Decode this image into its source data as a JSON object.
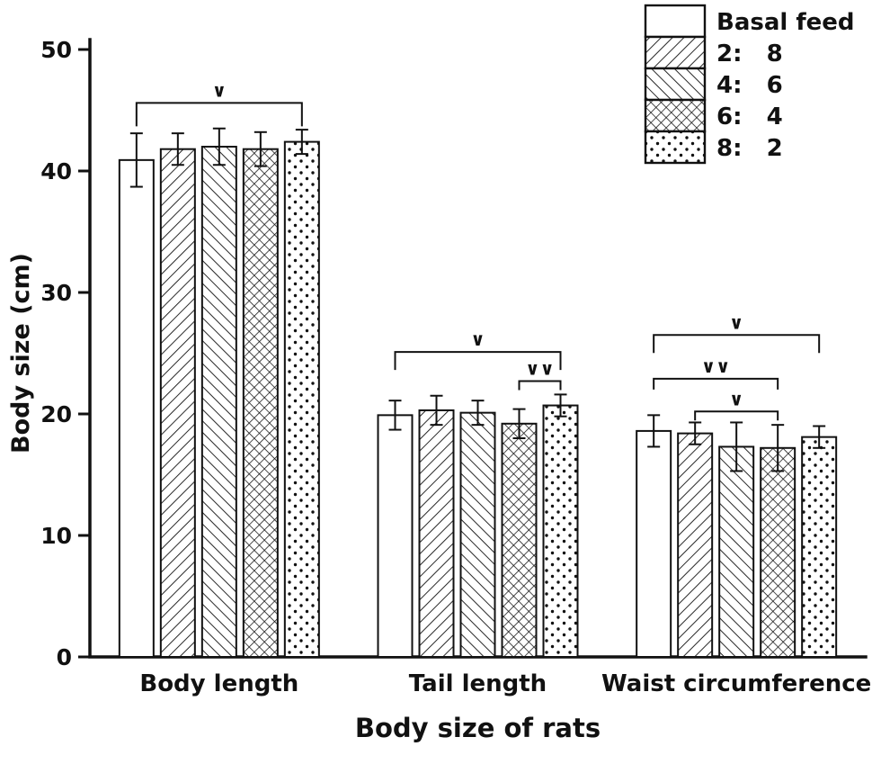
{
  "chart_data": {
    "type": "bar",
    "title": "Body size of rats",
    "ylabel": "Body size  (cm)",
    "ylim": [
      0,
      50
    ],
    "yticks": [
      0,
      10,
      20,
      30,
      40,
      50
    ],
    "grid": false,
    "legend_position": "top-right",
    "categories": [
      "Body length",
      "Tail length",
      "Waist circumference"
    ],
    "series": [
      {
        "name": "Basal feed",
        "pattern": "plain",
        "values": [
          40.9,
          19.9,
          18.6
        ],
        "errors": [
          2.2,
          1.2,
          1.3
        ]
      },
      {
        "name": "2:   8",
        "pattern": "diag-forward",
        "values": [
          41.8,
          20.3,
          18.4
        ],
        "errors": [
          1.3,
          1.2,
          0.9
        ]
      },
      {
        "name": "4:   6",
        "pattern": "diag-back",
        "values": [
          42.0,
          20.1,
          17.3
        ],
        "errors": [
          1.5,
          1.0,
          2.0
        ]
      },
      {
        "name": "6:   4",
        "pattern": "crosshatch",
        "values": [
          41.8,
          19.2,
          17.2
        ],
        "errors": [
          1.4,
          1.2,
          1.9
        ]
      },
      {
        "name": "8:   2",
        "pattern": "dots",
        "values": [
          42.4,
          20.7,
          18.1
        ],
        "errors": [
          1.0,
          0.9,
          0.9
        ]
      }
    ],
    "significance": [
      {
        "category": 0,
        "from": 0,
        "to": 4,
        "height": 45.6,
        "drop": 26,
        "label": "∨"
      },
      {
        "category": 1,
        "from": 0,
        "to": 4,
        "height": 25.1,
        "drop": 20,
        "label": "∨"
      },
      {
        "category": 1,
        "from": 3,
        "to": 4,
        "height": 22.7,
        "drop": 10,
        "label": "∨∨"
      },
      {
        "category": 2,
        "from": 0,
        "to": 4,
        "height": 26.5,
        "drop": 20,
        "label": "∨"
      },
      {
        "category": 2,
        "from": 0,
        "to": 3,
        "height": 22.9,
        "drop": 12,
        "label": "∨∨"
      },
      {
        "category": 2,
        "from": 1,
        "to": 3,
        "height": 20.2,
        "drop": 10,
        "label": "∨"
      }
    ]
  },
  "colors": {
    "ink": "#111111",
    "background": "#ffffff"
  }
}
